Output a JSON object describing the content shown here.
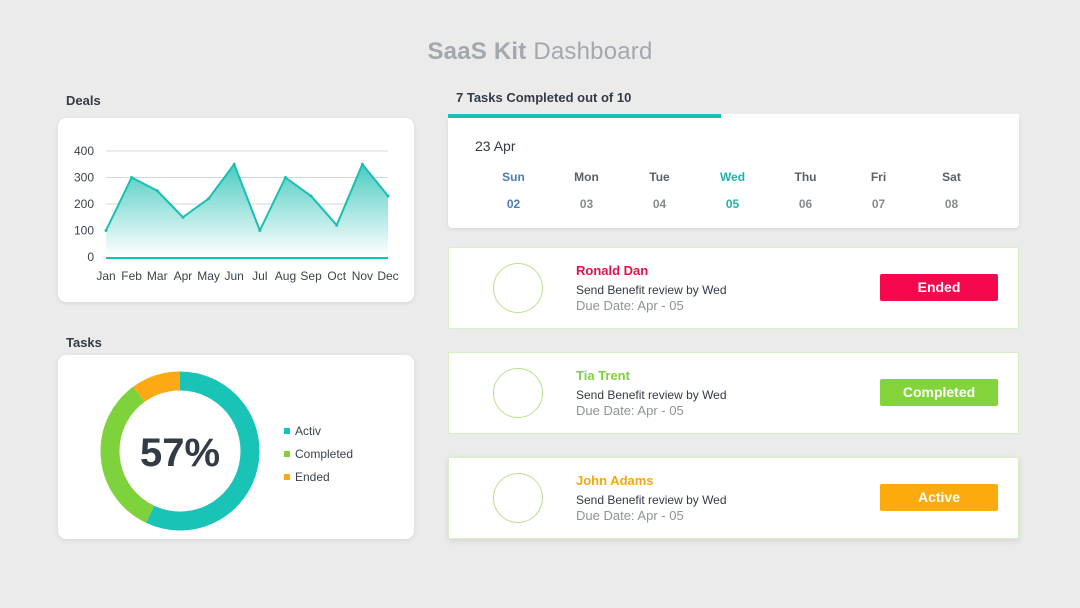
{
  "title": {
    "strong": "SaaS Kit",
    "rest": " Dashboard"
  },
  "deals": {
    "label": "Deals",
    "chart_data": {
      "type": "area",
      "categories": [
        "Jan",
        "Feb",
        "Mar",
        "Apr",
        "May",
        "Jun",
        "Jul",
        "Aug",
        "Sep",
        "Oct",
        "Nov",
        "Dec"
      ],
      "values": [
        100,
        300,
        250,
        150,
        220,
        350,
        100,
        300,
        230,
        120,
        350,
        230
      ],
      "yticks": [
        0,
        100,
        200,
        300,
        400
      ],
      "ylim": [
        0,
        400
      ],
      "grid": true,
      "colors": {
        "line": "#19bfb2",
        "fill_top": "#3fc9bd",
        "fill_bottom": "#ffffff"
      }
    }
  },
  "tasks": {
    "label": "Tasks",
    "center_value": "57%",
    "chart_data": {
      "type": "pie",
      "categories": [
        "Activ",
        "Completed",
        "Ended"
      ],
      "values": [
        57,
        33,
        10
      ],
      "colors": [
        "#19c3b6",
        "#7ed23b",
        "#fca913"
      ],
      "legend": "right"
    }
  },
  "progress": {
    "label": "7 Tasks Completed out of 10",
    "completed": 7,
    "total": 10,
    "color": "#19c3b6"
  },
  "calendar": {
    "date": "23 Apr",
    "days": [
      {
        "name": "Sun",
        "num": "02"
      },
      {
        "name": "Mon",
        "num": "03"
      },
      {
        "name": "Tue",
        "num": "04"
      },
      {
        "name": "Wed",
        "num": "05"
      },
      {
        "name": "Thu",
        "num": "06"
      },
      {
        "name": "Fri",
        "num": "07"
      },
      {
        "name": "Sat",
        "num": "08"
      }
    ]
  },
  "task_list": [
    {
      "name": "Ronald Dan",
      "name_color": "#e8104c",
      "desc": "Send Benefit review by Wed",
      "due": "Due Date: Apr - 05",
      "status": "Ended",
      "status_color": "#f5084c"
    },
    {
      "name": "Tia Trent",
      "name_color": "#7ed23b",
      "desc": "Send Benefit review by Wed",
      "due": "Due Date: Apr - 05",
      "status": "Completed",
      "status_color": "#82d43a"
    },
    {
      "name": "John Adams",
      "name_color": "#f7a70d",
      "desc": "Send Benefit review by Wed",
      "due": "Due Date: Apr - 05",
      "status": "Active",
      "status_color": "#fcab0c"
    }
  ]
}
